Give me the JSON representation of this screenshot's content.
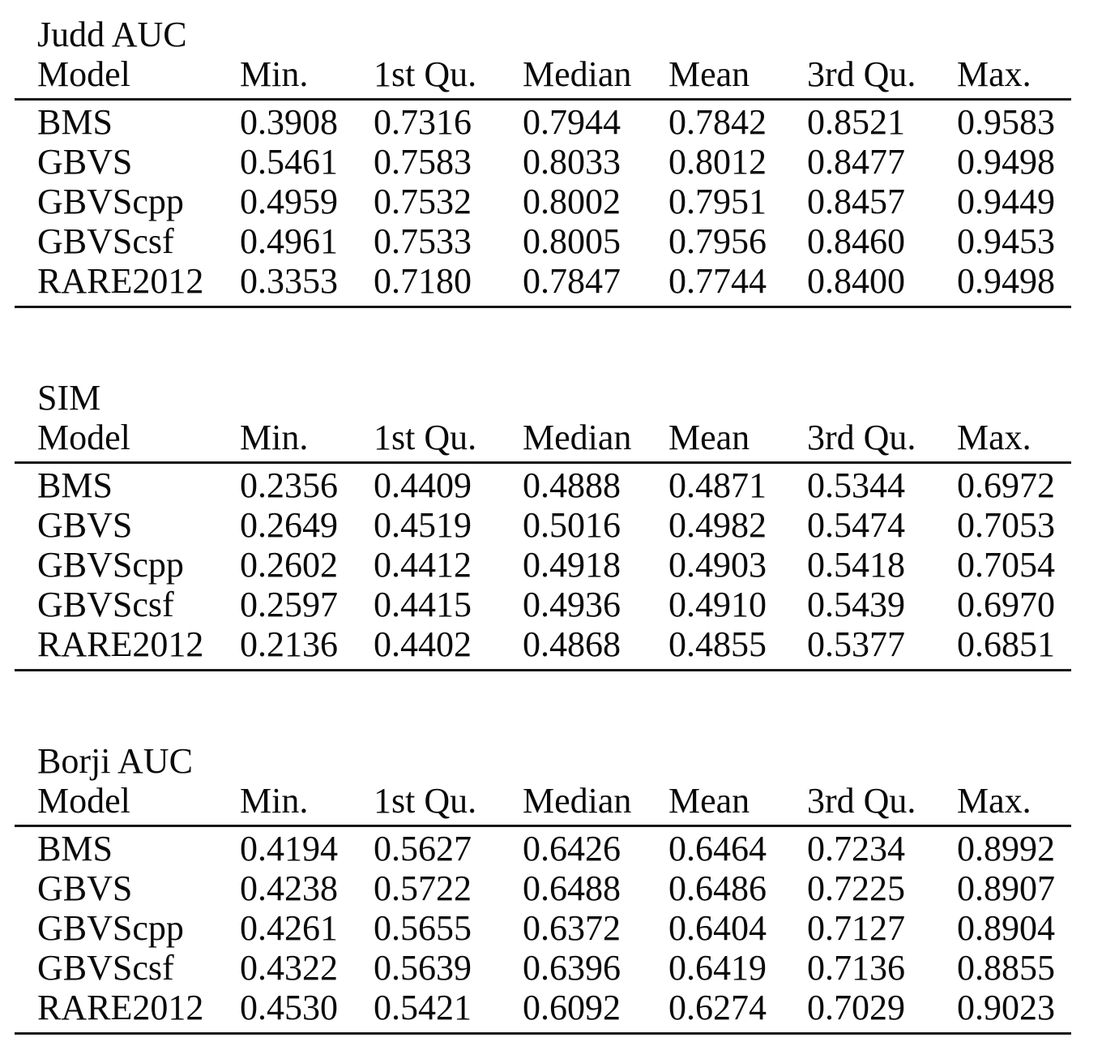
{
  "tables": [
    {
      "id": "judd-auc",
      "title": "Judd AUC",
      "columns": [
        "Model",
        "Min.",
        "1st Qu.",
        "Median",
        "Mean",
        "3rd Qu.",
        "Max."
      ],
      "rows": [
        [
          "BMS",
          "0.3908",
          "0.7316",
          "0.7944",
          "0.7842",
          "0.8521",
          "0.9583"
        ],
        [
          "GBVS",
          "0.5461",
          "0.7583",
          "0.8033",
          "0.8012",
          "0.8477",
          "0.9498"
        ],
        [
          "GBVScpp",
          "0.4959",
          "0.7532",
          "0.8002",
          "0.7951",
          "0.8457",
          "0.9449"
        ],
        [
          "GBVScsf",
          "0.4961",
          "0.7533",
          "0.8005",
          "0.7956",
          "0.8460",
          "0.9453"
        ],
        [
          "RARE2012",
          "0.3353",
          "0.7180",
          "0.7847",
          "0.7744",
          "0.8400",
          "0.9498"
        ]
      ]
    },
    {
      "id": "sim",
      "title": "SIM",
      "columns": [
        "Model",
        "Min.",
        "1st Qu.",
        "Median",
        "Mean",
        "3rd Qu.",
        "Max."
      ],
      "rows": [
        [
          "BMS",
          "0.2356",
          "0.4409",
          "0.4888",
          "0.4871",
          "0.5344",
          "0.6972"
        ],
        [
          "GBVS",
          "0.2649",
          "0.4519",
          "0.5016",
          "0.4982",
          "0.5474",
          "0.7053"
        ],
        [
          "GBVScpp",
          "0.2602",
          "0.4412",
          "0.4918",
          "0.4903",
          "0.5418",
          "0.7054"
        ],
        [
          "GBVScsf",
          "0.2597",
          "0.4415",
          "0.4936",
          "0.4910",
          "0.5439",
          "0.6970"
        ],
        [
          "RARE2012",
          "0.2136",
          "0.4402",
          "0.4868",
          "0.4855",
          "0.5377",
          "0.6851"
        ]
      ]
    },
    {
      "id": "borji-auc",
      "title": "Borji AUC",
      "columns": [
        "Model",
        "Min.",
        "1st Qu.",
        "Median",
        "Mean",
        "3rd Qu.",
        "Max."
      ],
      "rows": [
        [
          "BMS",
          "0.4194",
          "0.5627",
          "0.6426",
          "0.6464",
          "0.7234",
          "0.8992"
        ],
        [
          "GBVS",
          "0.4238",
          "0.5722",
          "0.6488",
          "0.6486",
          "0.7225",
          "0.8907"
        ],
        [
          "GBVScpp",
          "0.4261",
          "0.5655",
          "0.6372",
          "0.6404",
          "0.7127",
          "0.8904"
        ],
        [
          "GBVScsf",
          "0.4322",
          "0.5639",
          "0.6396",
          "0.6419",
          "0.7136",
          "0.8855"
        ],
        [
          "RARE2012",
          "0.4530",
          "0.5421",
          "0.6092",
          "0.6274",
          "0.7029",
          "0.9023"
        ]
      ]
    }
  ]
}
